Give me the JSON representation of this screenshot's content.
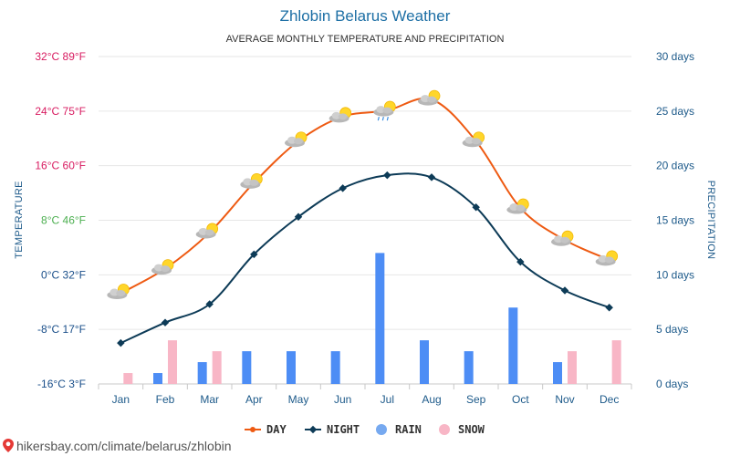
{
  "header": {
    "title": "Zhlobin Belarus Weather",
    "subtitle": "AVERAGE MONTHLY TEMPERATURE AND PRECIPITATION"
  },
  "footer": {
    "source": "hikersbay.com/climate/belarus/zhlobin"
  },
  "colors": {
    "day": "#ee5a12",
    "night": "#0d3b57",
    "rain": "#4d8df5",
    "snow": "#f8b6c6",
    "grid": "#e6e6e6",
    "tick_colors": [
      "#d81b60",
      "#d81b60",
      "#d81b60",
      "#4caf50",
      "#1a4f8a",
      "#1a4f8a",
      "#1a4f8a"
    ]
  },
  "chart_data": {
    "type": "line",
    "categories": [
      "Jan",
      "Feb",
      "Mar",
      "Apr",
      "May",
      "Jun",
      "Jul",
      "Aug",
      "Sep",
      "Oct",
      "Nov",
      "Dec"
    ],
    "y_left": {
      "label": "TEMPERATURE",
      "range": [
        -16,
        32
      ],
      "ticks": [
        {
          "value": 32,
          "label": "32°C 89°F"
        },
        {
          "value": 24,
          "label": "24°C 75°F"
        },
        {
          "value": 16,
          "label": "16°C 60°F"
        },
        {
          "value": 8,
          "label": "8°C 46°F"
        },
        {
          "value": 0,
          "label": "0°C 32°F"
        },
        {
          "value": -8,
          "label": "-8°C 17°F"
        },
        {
          "value": -16,
          "label": "-16°C 3°F"
        }
      ]
    },
    "y_right": {
      "label": "PRECIPITATION",
      "range": [
        0,
        30
      ],
      "ticks": [
        {
          "value": 30,
          "label": "30 days"
        },
        {
          "value": 25,
          "label": "25 days"
        },
        {
          "value": 20,
          "label": "20 days"
        },
        {
          "value": 15,
          "label": "15 days"
        },
        {
          "value": 10,
          "label": "10 days"
        },
        {
          "value": 5,
          "label": "5 days"
        },
        {
          "value": 0,
          "label": "0 days"
        }
      ]
    },
    "series": [
      {
        "name": "DAY",
        "kind": "line",
        "axis": "left",
        "values": [
          -2.7,
          0.9,
          6.2,
          13.5,
          19.6,
          23.2,
          24.1,
          25.7,
          19.6,
          9.8,
          5.1,
          2.2
        ]
      },
      {
        "name": "NIGHT",
        "kind": "line",
        "axis": "left",
        "values": [
          -10.0,
          -7.0,
          -4.3,
          3.0,
          8.5,
          12.7,
          14.6,
          14.3,
          9.9,
          1.9,
          -2.3,
          -4.8
        ]
      },
      {
        "name": "RAIN",
        "kind": "bar",
        "axis": "right",
        "values": [
          0,
          1,
          2,
          3,
          3,
          3,
          12,
          4,
          3,
          7,
          2,
          0
        ]
      },
      {
        "name": "SNOW",
        "kind": "bar",
        "axis": "right",
        "values": [
          1,
          4,
          3,
          0,
          0,
          0,
          0,
          0,
          0,
          0,
          3,
          4
        ]
      }
    ],
    "day_icons": [
      "sun-cloud",
      "sun-cloud",
      "sun-cloud",
      "sun-cloud",
      "sun-cloud",
      "sun-cloud",
      "sun-cloud-rain",
      "sun-cloud",
      "sun-cloud",
      "sun-cloud",
      "sun-cloud",
      "sun-cloud"
    ],
    "grid": true,
    "legend_position": "bottom-center"
  }
}
